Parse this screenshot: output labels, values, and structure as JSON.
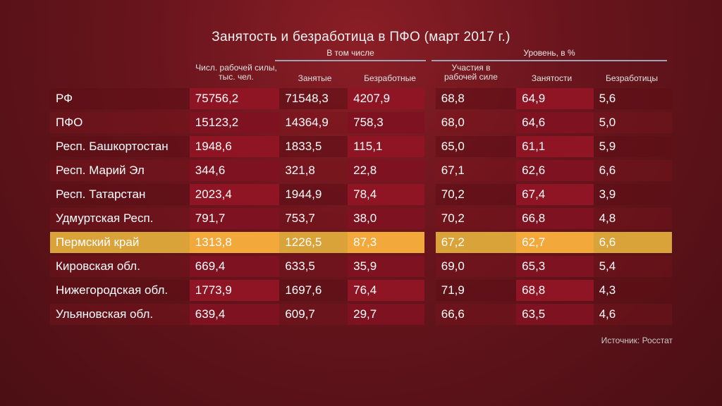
{
  "chart_data": {
    "type": "table",
    "title": "Занятость и безработица в ПФО (март 2017 г.)",
    "group_headers": {
      "including": "В том числе",
      "level": "Уровень, в %"
    },
    "columns": {
      "region": "",
      "labor_force": "Числ. рабочей силы, тыс. чел.",
      "employed": "Занятые",
      "unemployed": "Безработные",
      "participation": "Участия в рабочей силе",
      "employment": "Занятости",
      "unemployment": "Безработицы"
    },
    "rows": [
      {
        "region": "РФ",
        "labor_force": "75756,2",
        "employed": "71548,3",
        "unemployed": "4207,9",
        "participation": "68,8",
        "employment": "64,9",
        "unemployment": "5,6"
      },
      {
        "region": "ПФО",
        "labor_force": "15123,2",
        "employed": "14364,9",
        "unemployed": "758,3",
        "participation": "68,0",
        "employment": "64,6",
        "unemployment": "5,0"
      },
      {
        "region": "Респ. Башкортостан",
        "labor_force": "1948,6",
        "employed": "1833,5",
        "unemployed": "115,1",
        "participation": "65,0",
        "employment": "61,1",
        "unemployment": "5,9"
      },
      {
        "region": "Респ. Марий Эл",
        "labor_force": "344,6",
        "employed": "321,8",
        "unemployed": "22,8",
        "participation": "67,1",
        "employment": "62,6",
        "unemployment": "6,6"
      },
      {
        "region": "Респ. Татарстан",
        "labor_force": "2023,4",
        "employed": "1944,9",
        "unemployed": "78,4",
        "participation": "70,2",
        "employment": "67,4",
        "unemployment": "3,9"
      },
      {
        "region": "Удмуртская Респ.",
        "labor_force": "791,7",
        "employed": "753,7",
        "unemployed": "38,0",
        "participation": "70,2",
        "employment": "66,8",
        "unemployment": "4,8"
      },
      {
        "region": "Пермский край",
        "labor_force": "1313,8",
        "employed": "1226,5",
        "unemployed": "87,3",
        "participation": "67,2",
        "employment": "62,7",
        "unemployment": "6,6"
      },
      {
        "region": "Кировская обл.",
        "labor_force": "669,4",
        "employed": "633,5",
        "unemployed": "35,9",
        "participation": "69,0",
        "employment": "65,3",
        "unemployment": "5,4"
      },
      {
        "region": "Нижегородская обл.",
        "labor_force": "1773,9",
        "employed": "1697,6",
        "unemployed": "76,4",
        "participation": "71,9",
        "employment": "68,8",
        "unemployment": "4,3"
      },
      {
        "region": "Ульяновская обл.",
        "labor_force": "639,4",
        "employed": "609,7",
        "unemployed": "29,7",
        "participation": "66,6",
        "employment": "63,5",
        "unemployment": "4,6"
      }
    ],
    "highlighted_row": "Пермский край",
    "highlight_color": "#f2a83a"
  },
  "source": "Источник: Росстат"
}
